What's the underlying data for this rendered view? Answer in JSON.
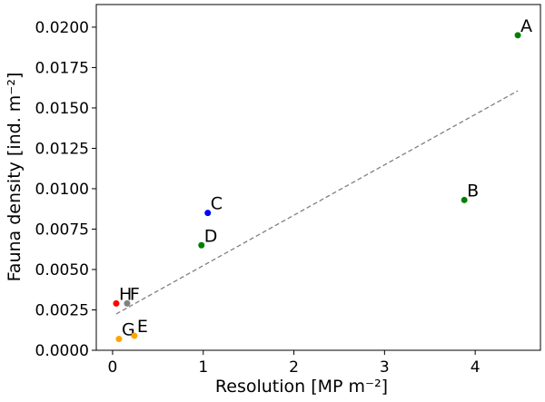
{
  "chart_data": {
    "type": "scatter",
    "xlabel": "Resolution [MP m⁻²]",
    "ylabel": "Fauna density [ind. m⁻²]",
    "xlim": [
      -0.18,
      4.72
    ],
    "ylim": [
      0,
      0.0214
    ],
    "xticks": [
      0,
      1,
      2,
      3,
      4
    ],
    "xtick_labels": [
      "0",
      "1",
      "2",
      "3",
      "4"
    ],
    "yticks": [
      0,
      0.0025,
      0.005,
      0.0075,
      0.01,
      0.0125,
      0.015,
      0.0175,
      0.02
    ],
    "ytick_labels": [
      "0.0000",
      "0.0025",
      "0.0050",
      "0.0075",
      "0.0100",
      "0.0125",
      "0.0150",
      "0.0175",
      "0.0200"
    ],
    "grid": false,
    "points": [
      {
        "label": "A",
        "x": 4.47,
        "y": 0.0195,
        "color": "#007f00"
      },
      {
        "label": "B",
        "x": 3.88,
        "y": 0.0093,
        "color": "#007f00"
      },
      {
        "label": "C",
        "x": 1.05,
        "y": 0.0085,
        "color": "#0000ff"
      },
      {
        "label": "D",
        "x": 0.98,
        "y": 0.0065,
        "color": "#007f00"
      },
      {
        "label": "H",
        "x": 0.04,
        "y": 0.0029,
        "color": "#ff0000"
      },
      {
        "label": "F",
        "x": 0.16,
        "y": 0.0029,
        "color": "#808080"
      },
      {
        "label": "G",
        "x": 0.07,
        "y": 0.0007,
        "color": "#ffa500"
      },
      {
        "label": "E",
        "x": 0.24,
        "y": 0.0009,
        "color": "#ffa500"
      }
    ],
    "trendline": {
      "x": [
        0.04,
        4.47
      ],
      "y": [
        0.00225,
        0.01606
      ],
      "color": "#808080",
      "style": "dashed"
    }
  }
}
